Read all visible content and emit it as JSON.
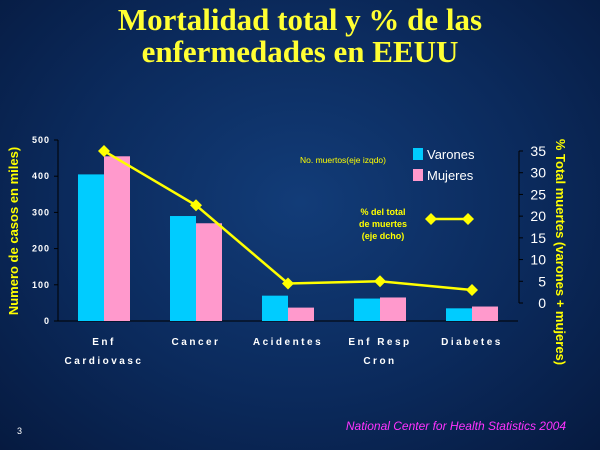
{
  "slide": {
    "title_line1": "Mortalidad total y % de las",
    "title_line2": "enfermedades en EEUU",
    "source": "National Center for Health Statistics 2004",
    "page_number": "3"
  },
  "chart_data": {
    "type": "bar",
    "categories": [
      [
        "Enf",
        "Cardiovasc"
      ],
      [
        "Cancer"
      ],
      [
        "Acidentes"
      ],
      [
        "Enf Resp",
        "Cron"
      ],
      [
        "Diabetes"
      ]
    ],
    "series": [
      {
        "name": "Varones",
        "values": [
          405,
          290,
          70,
          62,
          35
        ],
        "color": "#00ccff"
      },
      {
        "name": "Mujeres",
        "values": [
          455,
          270,
          37,
          65,
          40
        ],
        "color": "#ff99cc"
      }
    ],
    "line_series": {
      "name": [
        "% del total",
        "de muertes",
        "(eje dcho)"
      ],
      "values": [
        35,
        22.5,
        4.5,
        5,
        3
      ],
      "color": "#ffff00"
    },
    "ylabel": "Numero de casos en miles)",
    "y2label": "% Total muertes (varones + mujeres)",
    "ylim": [
      0,
      500
    ],
    "y2lim": [
      0,
      35
    ],
    "yticks": [
      0,
      100,
      200,
      300,
      400,
      500
    ],
    "y2ticks": [
      0,
      5,
      10,
      15,
      20,
      25,
      30,
      35
    ],
    "annotation": "No. muertos(eje izqdo)",
    "legend_position": "top-right"
  }
}
